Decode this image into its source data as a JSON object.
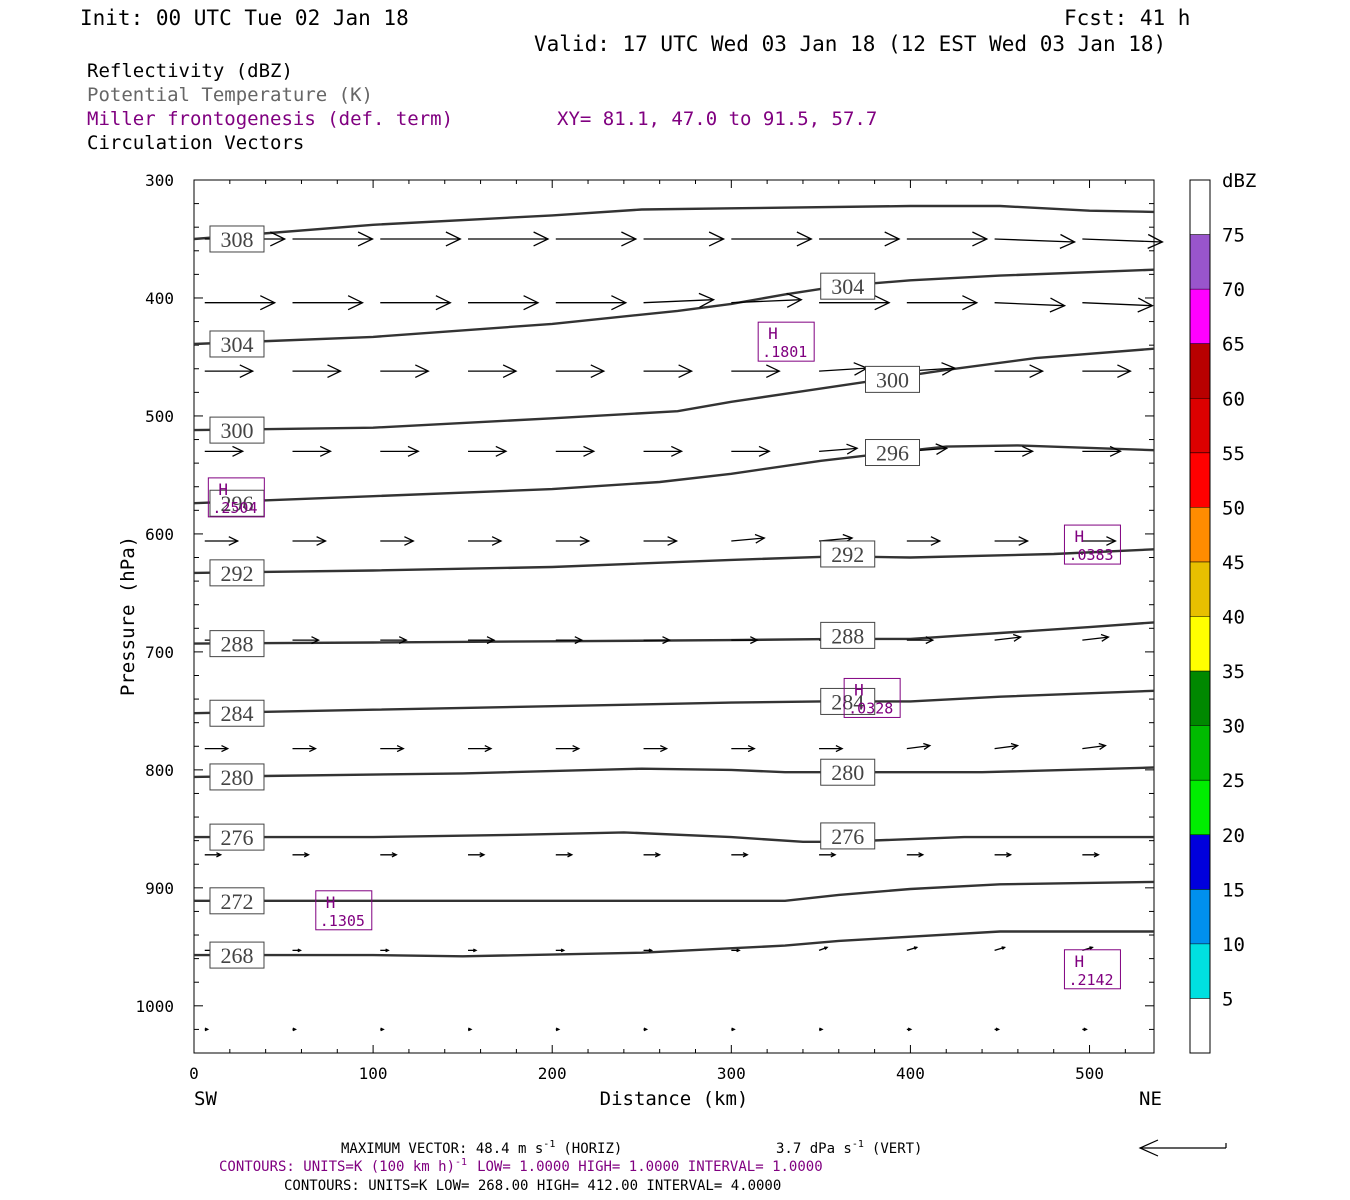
{
  "header": {
    "init": "Init: 00 UTC Tue 02 Jan 18",
    "fcst": "Fcst:   41 h",
    "valid": "Valid: 17 UTC Wed 03 Jan 18 (12 EST Wed 03 Jan 18)"
  },
  "fields": {
    "reflectivity": "Reflectivity (dBZ)",
    "theta": "Potential Temperature (K)",
    "frontogenesis": "Miller frontogenesis (def. term)",
    "xy": "XY=  81.1, 47.0 to  91.5, 57.7",
    "circulation": "Circulation Vectors"
  },
  "colors": {
    "theta_line": "#333333",
    "fronto": "#800080",
    "axis": "#000000"
  },
  "axes": {
    "ylabel": "Pressure (hPa)",
    "xlabel": "Distance (km)",
    "left_end": "SW",
    "right_end": "NE"
  },
  "colorbar": {
    "title": "dBZ",
    "levels": [
      5,
      10,
      15,
      20,
      25,
      30,
      35,
      40,
      45,
      50,
      55,
      60,
      65,
      70,
      75
    ],
    "colors": [
      "#ffffff",
      "#00e0e0",
      "#0090ee",
      "#0000dd",
      "#00ee00",
      "#00bb00",
      "#008800",
      "#ffff00",
      "#e8c000",
      "#ff8c00",
      "#ff0000",
      "#dd0000",
      "#b80000",
      "#ff00ff",
      "#9955cc",
      "#ffffff"
    ]
  },
  "footer": {
    "maxvec": "MAXIMUM VECTOR:  48.4 m s",
    "maxvec_horiz": "(HORIZ)",
    "maxvec_vert_val": "3.7 dPa s",
    "maxvec_vert": "(VERT)",
    "exp": "-1",
    "contours1_a": "CONTOURS:  UNITS=K (100 km h)",
    "contours1_b": "LOW=  1.0000       HIGH=  1.0000       INTERVAL=   1.0000",
    "contours2": "CONTOURS:  UNITS=K  LOW=  268.00      HIGH=  412.00      INTERVAL=   4.0000"
  },
  "chart_data": {
    "type": "line",
    "xlim": [
      0,
      536
    ],
    "ylim_hPa": [
      300,
      1040
    ],
    "y_scale": "linear-reversed",
    "x_ticks": [
      0,
      100,
      200,
      300,
      400,
      500
    ],
    "y_ticks": [
      300,
      400,
      500,
      600,
      700,
      800,
      900,
      1000
    ],
    "x_tick_labels": [
      "0",
      "100",
      "200",
      "300",
      "400",
      "500"
    ],
    "y_tick_labels": [
      "300",
      "400",
      "500",
      "600",
      "700",
      "800",
      "900",
      "1000"
    ],
    "isentropes": [
      {
        "name": "268",
        "points": [
          [
            0,
            957
          ],
          [
            100,
            957
          ],
          [
            150,
            958
          ],
          [
            250,
            955
          ],
          [
            330,
            949
          ],
          [
            360,
            945
          ],
          [
            450,
            937
          ],
          [
            536,
            937
          ]
        ],
        "labels": [
          [
            24,
            957
          ]
        ]
      },
      {
        "name": "272",
        "points": [
          [
            0,
            911
          ],
          [
            200,
            911
          ],
          [
            300,
            911
          ],
          [
            330,
            911
          ],
          [
            360,
            906
          ],
          [
            400,
            901
          ],
          [
            450,
            897
          ],
          [
            536,
            895
          ]
        ],
        "labels": [
          [
            24,
            911
          ]
        ]
      },
      {
        "name": "276",
        "points": [
          [
            0,
            857
          ],
          [
            100,
            857
          ],
          [
            180,
            855
          ],
          [
            240,
            853
          ],
          [
            300,
            857
          ],
          [
            340,
            861
          ],
          [
            360,
            861
          ],
          [
            430,
            857
          ],
          [
            536,
            857
          ]
        ],
        "labels": [
          [
            24,
            857
          ],
          [
            365,
            856
          ]
        ]
      },
      {
        "name": "280",
        "points": [
          [
            0,
            806
          ],
          [
            150,
            803
          ],
          [
            250,
            799
          ],
          [
            300,
            800
          ],
          [
            330,
            802
          ],
          [
            360,
            802
          ],
          [
            440,
            802
          ],
          [
            536,
            798
          ]
        ],
        "labels": [
          [
            24,
            806
          ],
          [
            365,
            802
          ]
        ]
      },
      {
        "name": "284",
        "points": [
          [
            0,
            752
          ],
          [
            100,
            749
          ],
          [
            200,
            746
          ],
          [
            300,
            743
          ],
          [
            350,
            742
          ],
          [
            400,
            742
          ],
          [
            450,
            738
          ],
          [
            536,
            733
          ]
        ],
        "labels": [
          [
            24,
            752
          ],
          [
            365,
            742
          ]
        ]
      },
      {
        "name": "288",
        "points": [
          [
            0,
            693
          ],
          [
            100,
            692
          ],
          [
            200,
            691
          ],
          [
            300,
            690
          ],
          [
            360,
            689
          ],
          [
            400,
            689
          ],
          [
            450,
            684
          ],
          [
            500,
            679
          ],
          [
            536,
            675
          ]
        ],
        "labels": [
          [
            24,
            693
          ],
          [
            365,
            686
          ]
        ]
      },
      {
        "name": "292",
        "points": [
          [
            0,
            633
          ],
          [
            100,
            631
          ],
          [
            200,
            628
          ],
          [
            300,
            622
          ],
          [
            360,
            619
          ],
          [
            400,
            620
          ],
          [
            480,
            617
          ],
          [
            536,
            613
          ]
        ],
        "labels": [
          [
            24,
            633
          ],
          [
            365,
            617
          ]
        ]
      },
      {
        "name": "296",
        "points": [
          [
            0,
            574
          ],
          [
            100,
            568
          ],
          [
            200,
            562
          ],
          [
            260,
            556
          ],
          [
            300,
            549
          ],
          [
            350,
            538
          ],
          [
            390,
            531
          ],
          [
            420,
            526
          ],
          [
            460,
            525
          ],
          [
            536,
            529
          ]
        ],
        "labels": [
          [
            24,
            574
          ],
          [
            390,
            531
          ]
        ]
      },
      {
        "name": "300",
        "points": [
          [
            0,
            512
          ],
          [
            100,
            510
          ],
          [
            200,
            502
          ],
          [
            270,
            496
          ],
          [
            300,
            488
          ],
          [
            340,
            479
          ],
          [
            380,
            470
          ],
          [
            420,
            461
          ],
          [
            470,
            451
          ],
          [
            536,
            443
          ]
        ],
        "labels": [
          [
            24,
            512
          ],
          [
            390,
            469
          ]
        ]
      },
      {
        "name": "304",
        "points": [
          [
            0,
            439
          ],
          [
            100,
            433
          ],
          [
            200,
            422
          ],
          [
            270,
            411
          ],
          [
            300,
            405
          ],
          [
            330,
            397
          ],
          [
            360,
            390
          ],
          [
            400,
            385
          ],
          [
            450,
            381
          ],
          [
            536,
            376
          ]
        ],
        "labels": [
          [
            24,
            439
          ],
          [
            365,
            390
          ]
        ]
      },
      {
        "name": "308",
        "points": [
          [
            0,
            350
          ],
          [
            100,
            338
          ],
          [
            200,
            330
          ],
          [
            250,
            325
          ],
          [
            300,
            324
          ],
          [
            400,
            322
          ],
          [
            450,
            322
          ],
          [
            500,
            326
          ],
          [
            536,
            327
          ]
        ],
        "labels": [
          [
            24,
            350
          ]
        ]
      }
    ],
    "frontogenesis_maxima": [
      {
        "label": "H",
        "value": ".1801",
        "x": 315,
        "p": 440
      },
      {
        "label": "H",
        "value": ".2504",
        "x": 8,
        "p": 572
      },
      {
        "label": "H",
        "value": ".0383",
        "x": 486,
        "p": 612
      },
      {
        "label": "H",
        "value": ".0328",
        "x": 363,
        "p": 742
      },
      {
        "label": "H",
        "value": ".1305",
        "x": 68,
        "p": 922
      },
      {
        "label": "H",
        "value": ".2142",
        "x": 486,
        "p": 972
      }
    ],
    "vectors": {
      "x": [
        6,
        55,
        104,
        153,
        202,
        251,
        300,
        349,
        398,
        447,
        496
      ],
      "rows": [
        {
          "p": 350,
          "u": [
            80,
            80,
            80,
            80,
            80,
            80,
            80,
            80,
            80,
            80,
            80
          ],
          "w": [
            0,
            0,
            0,
            0,
            0,
            0,
            0,
            0,
            0,
            -1,
            -1
          ]
        },
        {
          "p": 404,
          "u": [
            70,
            70,
            70,
            70,
            70,
            70,
            70,
            70,
            70,
            70,
            70
          ],
          "w": [
            0,
            0,
            0,
            0,
            0,
            1,
            1,
            0,
            0,
            -1,
            -1
          ]
        },
        {
          "p": 462,
          "u": [
            48,
            48,
            48,
            48,
            48,
            48,
            48,
            48,
            48,
            48,
            48
          ],
          "w": [
            0,
            0,
            0,
            0,
            0,
            0,
            0,
            1,
            1,
            0,
            0
          ]
        },
        {
          "p": 530,
          "u": [
            38,
            38,
            38,
            38,
            38,
            38,
            38,
            38,
            40,
            38,
            38
          ],
          "w": [
            0,
            0,
            0,
            0,
            0,
            0,
            0,
            1,
            1,
            0,
            0
          ]
        },
        {
          "p": 606,
          "u": [
            33,
            33,
            33,
            33,
            33,
            33,
            33,
            33,
            33,
            33,
            33
          ],
          "w": [
            0,
            0,
            0,
            0,
            0,
            0,
            1,
            1,
            0,
            0,
            0
          ]
        },
        {
          "p": 690,
          "u": [
            26,
            26,
            26,
            26,
            26,
            26,
            26,
            26,
            26,
            26,
            26
          ],
          "w": [
            0,
            0,
            0,
            0,
            0,
            0,
            0,
            0,
            0,
            1,
            1
          ]
        },
        {
          "p": 782,
          "u": [
            23,
            23,
            23,
            23,
            23,
            23,
            23,
            23,
            23,
            23,
            23
          ],
          "w": [
            0,
            0,
            0,
            0,
            0,
            0,
            0,
            0,
            1,
            1,
            1
          ]
        },
        {
          "p": 872,
          "u": [
            16,
            16,
            16,
            16,
            16,
            16,
            16,
            16,
            16,
            16,
            16
          ],
          "w": [
            0,
            0,
            0,
            0,
            0,
            0,
            0,
            0,
            0,
            0,
            0
          ]
        },
        {
          "p": 953,
          "u": [
            8,
            8,
            8,
            8,
            8,
            8,
            8,
            8,
            10,
            10,
            10
          ],
          "w": [
            0,
            0,
            0,
            0,
            0,
            0,
            0,
            1,
            1,
            1,
            1
          ]
        },
        {
          "p": 1020,
          "u": [
            3,
            3,
            3,
            3,
            3,
            3,
            3,
            3,
            4,
            4,
            4
          ],
          "w": [
            0,
            0,
            0,
            0,
            0,
            0,
            0,
            0,
            0,
            0,
            0
          ]
        }
      ]
    }
  }
}
